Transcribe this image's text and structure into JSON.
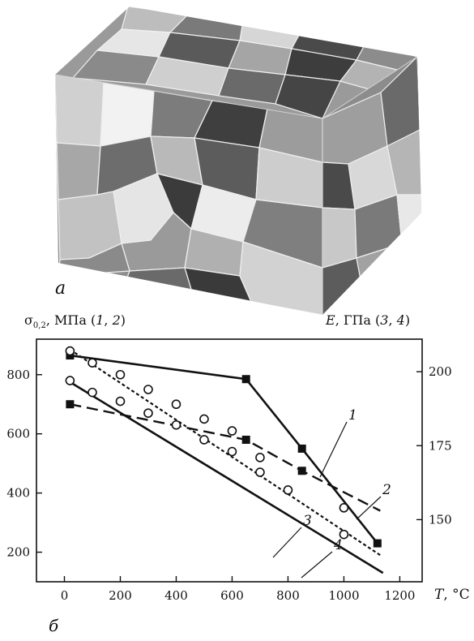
{
  "panel_a": {
    "label": "а",
    "description_colors": [
      "#4a4a4a",
      "#6e6e6e",
      "#8e8e8e",
      "#a9a9a9",
      "#c4c4c4",
      "#e2e2e2",
      "#3a3a3a"
    ]
  },
  "chart_data": {
    "type": "line",
    "panel_label": "б",
    "left_axis_label": "σ0,2, МПа (1, 2)",
    "right_axis_label": "E, ГПа (3, 4)",
    "x_axis_label": "T, °C",
    "x_ticks": [
      0,
      200,
      400,
      600,
      800,
      1000,
      1200
    ],
    "xlim": [
      -100,
      1280
    ],
    "y_left_ticks": [
      200,
      400,
      600,
      800
    ],
    "y_left_lim": [
      100,
      920
    ],
    "y_right_ticks": [
      150,
      175,
      200
    ],
    "y_right_lim": [
      129,
      211
    ],
    "series": [
      {
        "name": "1",
        "axis": "left",
        "marker": "square",
        "line": "solid",
        "x": [
          20,
          650,
          850,
          1120
        ],
        "y": [
          865,
          785,
          550,
          230
        ],
        "curve_x": [
          20,
          650,
          850,
          1120
        ],
        "curve_y": [
          865,
          785,
          550,
          230
        ]
      },
      {
        "name": "2",
        "axis": "left",
        "marker": "square",
        "line": "dashed",
        "x": [
          20,
          650,
          850
        ],
        "y": [
          700,
          580,
          475
        ],
        "curve_x": [
          20,
          650,
          850,
          1130
        ],
        "curve_y": [
          700,
          580,
          475,
          340
        ]
      },
      {
        "name": "3",
        "axis": "right",
        "marker": "circle",
        "line": "dotted",
        "x": [
          20,
          100,
          200,
          300,
          400,
          500,
          600,
          700,
          1000
        ],
        "y": [
          207,
          203,
          199,
          194,
          189,
          184,
          180,
          171,
          154
        ],
        "curve_x": [
          20,
          1130
        ],
        "curve_y": [
          207.5,
          138
        ]
      },
      {
        "name": "4",
        "axis": "right",
        "marker": "circle",
        "line": "solid",
        "x": [
          20,
          100,
          200,
          300,
          400,
          500,
          600,
          700,
          800,
          1000
        ],
        "y": [
          197,
          193,
          190,
          186,
          182,
          177,
          173,
          166,
          160,
          145
        ],
        "curve_x": [
          20,
          1140
        ],
        "curve_y": [
          196.5,
          132
        ]
      }
    ],
    "grid": false,
    "legend": "inline numbers"
  }
}
